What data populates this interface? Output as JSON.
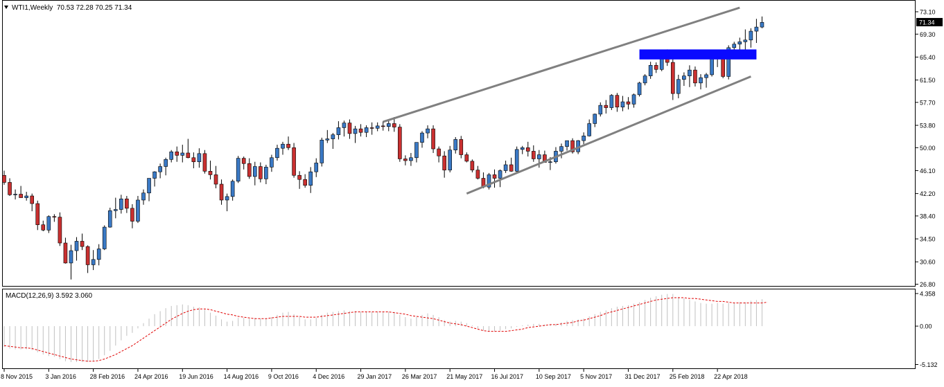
{
  "header": {
    "dropdown_icon": "triangle-down-icon",
    "label": "WTI1,Weekly  70.53 72.28 70.25 71.34"
  },
  "macd_header": {
    "label": "MACD(12,26,9) 3.592 3.060"
  },
  "colors": {
    "bull": "#3a79c5",
    "bear": "#c93030",
    "wick": "#000000",
    "channel": "#808080",
    "zone": "#0a0aff",
    "macd_hist": "#c0c0c0",
    "macd_signal": "#e00000",
    "axis": "#000000"
  },
  "chart_data": [
    {
      "type": "candlestick",
      "symbol": "WTI1",
      "timeframe": "Weekly",
      "last_price_label": "71.34",
      "y_ticks": [
        "73.10",
        "69.30",
        "65.40",
        "61.50",
        "57.70",
        "53.80",
        "50.00",
        "46.10",
        "42.20",
        "38.40",
        "34.50",
        "30.60",
        "26.80"
      ],
      "x_ticks": [
        "8 Nov 2015",
        "3 Jan 2016",
        "28 Feb 2016",
        "24 Apr 2016",
        "19 Jun 2016",
        "14 Aug 2016",
        "9 Oct 2016",
        "4 Dec 2016",
        "29 Jan 2017",
        "26 Mar 2017",
        "21 May 2017",
        "16 Jul 2017",
        "10 Sep 2017",
        "5 Nov 2017",
        "31 Dec 2017",
        "25 Feb 2018",
        "22 Apr 2018"
      ],
      "ylim": [
        26.8,
        73.1
      ],
      "first_week": "2015-11-08",
      "ohlc": [
        [
          45.3,
          46.1,
          43.7,
          44.1
        ],
        [
          44.1,
          44.8,
          41.8,
          42.0
        ],
        [
          42.0,
          42.9,
          41.2,
          42.1
        ],
        [
          42.1,
          43.5,
          41.6,
          41.5
        ],
        [
          41.5,
          42.5,
          41.0,
          41.8
        ],
        [
          41.8,
          42.2,
          39.2,
          40.5
        ],
        [
          40.5,
          41.0,
          36.0,
          36.9
        ],
        [
          36.9,
          37.6,
          35.8,
          36.0
        ],
        [
          36.0,
          38.5,
          35.5,
          38.3
        ],
        [
          38.3,
          38.7,
          37.4,
          38.2
        ],
        [
          38.2,
          39.0,
          33.3,
          33.8
        ],
        [
          33.8,
          34.7,
          30.3,
          30.4
        ],
        [
          30.4,
          33.5,
          27.6,
          32.5
        ],
        [
          32.5,
          34.8,
          30.8,
          34.1
        ],
        [
          34.1,
          35.4,
          32.6,
          33.2
        ],
        [
          33.2,
          33.4,
          28.7,
          30.1
        ],
        [
          30.1,
          32.6,
          29.2,
          31.0
        ],
        [
          31.0,
          33.6,
          30.0,
          32.8
        ],
        [
          32.8,
          36.8,
          32.6,
          36.5
        ],
        [
          36.5,
          39.8,
          36.4,
          39.3
        ],
        [
          39.3,
          41.5,
          38.0,
          39.5
        ],
        [
          39.5,
          42.0,
          38.8,
          41.3
        ],
        [
          41.3,
          41.8,
          38.9,
          39.7
        ],
        [
          39.7,
          40.4,
          36.3,
          37.5
        ],
        [
          37.5,
          41.8,
          37.2,
          41.1
        ],
        [
          41.1,
          42.9,
          40.3,
          42.3
        ],
        [
          42.3,
          44.8,
          40.9,
          44.8
        ],
        [
          44.8,
          46.0,
          43.4,
          45.9
        ],
        [
          45.9,
          47.3,
          44.8,
          46.8
        ],
        [
          46.8,
          48.3,
          45.3,
          48.0
        ],
        [
          48.0,
          49.6,
          47.5,
          49.3
        ],
        [
          49.3,
          50.2,
          47.6,
          48.7
        ],
        [
          48.7,
          50.5,
          47.5,
          49.1
        ],
        [
          49.1,
          51.5,
          48.2,
          48.3
        ],
        [
          48.3,
          49.2,
          46.5,
          47.6
        ],
        [
          47.6,
          49.9,
          46.6,
          49.0
        ],
        [
          49.0,
          49.6,
          45.6,
          46.0
        ],
        [
          46.0,
          47.8,
          44.6,
          45.4
        ],
        [
          45.4,
          46.9,
          43.1,
          43.8
        ],
        [
          43.8,
          44.6,
          40.3,
          41.1
        ],
        [
          41.1,
          42.2,
          39.2,
          41.7
        ],
        [
          41.7,
          44.6,
          41.0,
          44.3
        ],
        [
          44.3,
          48.6,
          44.0,
          48.2
        ],
        [
          48.2,
          48.5,
          46.3,
          47.3
        ],
        [
          47.3,
          48.2,
          44.7,
          45.1
        ],
        [
          45.1,
          47.6,
          43.6,
          46.8
        ],
        [
          46.8,
          47.5,
          44.1,
          44.7
        ],
        [
          44.7,
          47.1,
          43.8,
          46.7
        ],
        [
          46.7,
          48.8,
          45.9,
          48.3
        ],
        [
          48.3,
          50.5,
          47.8,
          49.9
        ],
        [
          49.9,
          51.0,
          48.8,
          50.6
        ],
        [
          50.6,
          51.9,
          49.6,
          50.0
        ],
        [
          50.0,
          50.8,
          44.9,
          45.3
        ],
        [
          45.3,
          46.0,
          43.0,
          44.6
        ],
        [
          44.6,
          45.5,
          43.2,
          43.6
        ],
        [
          43.6,
          46.7,
          42.3,
          45.9
        ],
        [
          45.9,
          48.2,
          45.0,
          47.4
        ],
        [
          47.4,
          51.7,
          46.8,
          51.3
        ],
        [
          51.3,
          53.0,
          50.8,
          51.5
        ],
        [
          51.5,
          52.5,
          49.8,
          52.2
        ],
        [
          52.2,
          54.5,
          51.4,
          53.4
        ],
        [
          53.4,
          54.6,
          51.9,
          54.2
        ],
        [
          54.2,
          54.8,
          51.5,
          52.4
        ],
        [
          52.4,
          53.7,
          50.8,
          53.2
        ],
        [
          53.2,
          54.0,
          51.9,
          52.6
        ],
        [
          52.6,
          53.8,
          51.8,
          53.4
        ],
        [
          53.4,
          54.3,
          52.2,
          53.3
        ],
        [
          53.3,
          54.3,
          52.8,
          53.7
        ],
        [
          53.7,
          54.5,
          52.9,
          53.6
        ],
        [
          53.6,
          54.7,
          52.8,
          54.1
        ],
        [
          54.1,
          55.2,
          52.7,
          53.5
        ],
        [
          53.5,
          54.0,
          47.6,
          48.1
        ],
        [
          48.1,
          48.7,
          47.0,
          47.8
        ],
        [
          47.8,
          49.1,
          46.9,
          48.3
        ],
        [
          48.3,
          50.9,
          47.5,
          50.9
        ],
        [
          50.9,
          52.8,
          50.0,
          52.5
        ],
        [
          52.5,
          53.8,
          51.6,
          53.2
        ],
        [
          53.2,
          53.8,
          49.1,
          49.8
        ],
        [
          49.8,
          50.2,
          47.5,
          48.6
        ],
        [
          48.6,
          49.4,
          44.9,
          46.2
        ],
        [
          46.2,
          50.3,
          45.8,
          49.6
        ],
        [
          49.6,
          51.8,
          49.0,
          51.4
        ],
        [
          51.4,
          52.0,
          48.2,
          48.8
        ],
        [
          48.8,
          49.2,
          47.5,
          47.7
        ],
        [
          47.7,
          48.0,
          45.8,
          46.2
        ],
        [
          46.2,
          46.9,
          44.6,
          44.8
        ],
        [
          44.8,
          45.8,
          43.1,
          43.3
        ],
        [
          43.3,
          45.7,
          42.9,
          45.4
        ],
        [
          45.4,
          46.3,
          43.2,
          44.8
        ],
        [
          44.8,
          46.3,
          43.3,
          46.1
        ],
        [
          46.1,
          47.8,
          45.7,
          47.1
        ],
        [
          47.1,
          48.3,
          45.9,
          46.0
        ],
        [
          46.0,
          50.2,
          45.8,
          49.7
        ],
        [
          49.7,
          50.3,
          48.9,
          50.0
        ],
        [
          50.0,
          51.0,
          48.5,
          49.4
        ],
        [
          49.4,
          50.4,
          47.6,
          48.1
        ],
        [
          48.1,
          49.6,
          46.6,
          48.8
        ],
        [
          48.8,
          49.5,
          47.6,
          47.5
        ],
        [
          47.5,
          48.4,
          46.2,
          47.6
        ],
        [
          47.6,
          50.1,
          47.3,
          49.4
        ],
        [
          49.4,
          50.7,
          48.2,
          50.2
        ],
        [
          50.2,
          51.2,
          49.5,
          51.2
        ],
        [
          51.2,
          51.6,
          49.0,
          49.3
        ],
        [
          49.3,
          51.3,
          48.9,
          51.2
        ],
        [
          51.2,
          52.6,
          50.6,
          52.0
        ],
        [
          52.0,
          54.8,
          51.9,
          54.1
        ],
        [
          54.1,
          55.8,
          53.5,
          55.7
        ],
        [
          55.7,
          57.7,
          55.3,
          57.2
        ],
        [
          57.2,
          58.1,
          55.8,
          56.8
        ],
        [
          56.8,
          59.1,
          56.4,
          58.9
        ],
        [
          58.9,
          59.3,
          56.1,
          56.9
        ],
        [
          56.9,
          58.8,
          56.2,
          57.8
        ],
        [
          57.8,
          58.6,
          56.5,
          57.4
        ],
        [
          57.4,
          59.2,
          56.8,
          59.0
        ],
        [
          59.0,
          61.2,
          58.7,
          61.0
        ],
        [
          61.0,
          62.5,
          60.6,
          62.2
        ],
        [
          62.2,
          64.6,
          61.7,
          64.0
        ],
        [
          64.0,
          64.5,
          62.7,
          63.3
        ],
        [
          63.3,
          66.4,
          63.0,
          66.3
        ],
        [
          66.3,
          66.7,
          63.9,
          64.5
        ],
        [
          64.5,
          65.2,
          58.1,
          59.2
        ],
        [
          59.2,
          62.4,
          58.4,
          61.6
        ],
        [
          61.6,
          62.8,
          60.5,
          62.2
        ],
        [
          62.2,
          64.0,
          60.3,
          63.2
        ],
        [
          63.2,
          63.8,
          60.4,
          61.0
        ],
        [
          61.0,
          62.5,
          59.9,
          61.9
        ],
        [
          61.9,
          62.7,
          60.2,
          62.4
        ],
        [
          62.4,
          65.7,
          62.1,
          65.2
        ],
        [
          65.2,
          66.5,
          63.7,
          65.7
        ],
        [
          65.7,
          66.2,
          61.8,
          62.1
        ],
        [
          62.1,
          67.4,
          61.6,
          67.0
        ],
        [
          67.0,
          68.0,
          65.7,
          67.6
        ],
        [
          67.6,
          68.7,
          66.4,
          68.0
        ],
        [
          68.0,
          70.1,
          66.3,
          68.3
        ],
        [
          68.3,
          70.3,
          67.0,
          69.8
        ],
        [
          69.8,
          71.9,
          67.8,
          70.5
        ],
        [
          70.5,
          72.3,
          70.3,
          71.3
        ]
      ],
      "channel_upper": [
        [
          "2017-02-26",
          54.4
        ],
        [
          "2018-05-20",
          73.8
        ]
      ],
      "channel_lower": [
        [
          "2017-06-11",
          42.2
        ],
        [
          "2018-06-03",
          62.1
        ]
      ],
      "zone": {
        "from": "2018-01-14",
        "to": "2018-06-10",
        "low": 65.0,
        "high": 66.7
      }
    },
    {
      "type": "macd",
      "label": "MACD(12,26,9)",
      "macd": 3.592,
      "signal": 3.06,
      "y_ticks": [
        "4.358",
        "0.00",
        "-5.132"
      ],
      "ylim": [
        -5.132,
        4.358
      ],
      "macd_series": [
        -2.8,
        -3.0,
        -3.1,
        -3.1,
        -3.1,
        -3.2,
        -3.5,
        -3.8,
        -4.0,
        -4.1,
        -4.4,
        -4.7,
        -4.8,
        -4.8,
        -4.8,
        -4.8,
        -4.7,
        -4.4,
        -3.9,
        -3.3,
        -2.6,
        -1.9,
        -1.3,
        -0.9,
        -0.3,
        0.4,
        1.0,
        1.6,
        2.0,
        2.4,
        2.7,
        2.8,
        2.9,
        2.8,
        2.6,
        2.5,
        2.2,
        1.8,
        1.4,
        0.9,
        0.6,
        0.7,
        1.1,
        1.1,
        1.0,
        1.1,
        1.0,
        1.0,
        1.2,
        1.5,
        1.8,
        1.9,
        1.6,
        1.2,
        0.9,
        0.9,
        1.1,
        1.5,
        1.8,
        1.9,
        2.0,
        2.1,
        2.0,
        2.0,
        1.9,
        1.9,
        1.9,
        1.9,
        1.9,
        1.9,
        1.9,
        1.5,
        1.2,
        1.0,
        1.2,
        1.5,
        1.7,
        1.5,
        1.2,
        0.8,
        0.6,
        0.7,
        0.6,
        0.4,
        0.1,
        -0.3,
        -0.6,
        -0.7,
        -0.7,
        -0.6,
        -0.4,
        -0.3,
        -0.1,
        0.1,
        0.2,
        0.3,
        0.3,
        0.2,
        0.2,
        0.3,
        0.5,
        0.7,
        0.8,
        0.9,
        1.0,
        1.3,
        1.6,
        1.9,
        2.1,
        2.4,
        2.6,
        2.7,
        2.8,
        3.0,
        3.2,
        3.5,
        3.8,
        4.0,
        4.2,
        4.3,
        4.3,
        3.9,
        3.7,
        3.5,
        3.3,
        3.1,
        3.0,
        3.0,
        3.1,
        3.0,
        3.1,
        3.1,
        3.2,
        3.2,
        3.4,
        3.5,
        3.6
      ],
      "signal_series": [
        -2.6,
        -2.7,
        -2.8,
        -2.9,
        -2.9,
        -3.0,
        -3.2,
        -3.4,
        -3.6,
        -3.8,
        -4.0,
        -4.2,
        -4.4,
        -4.5,
        -4.6,
        -4.7,
        -4.7,
        -4.6,
        -4.4,
        -4.1,
        -3.8,
        -3.4,
        -3.0,
        -2.6,
        -2.1,
        -1.6,
        -1.1,
        -0.6,
        -0.1,
        0.4,
        0.9,
        1.3,
        1.7,
        2.0,
        2.2,
        2.3,
        2.3,
        2.2,
        2.0,
        1.8,
        1.6,
        1.5,
        1.3,
        1.2,
        1.1,
        1.0,
        1.0,
        1.0,
        1.1,
        1.2,
        1.3,
        1.3,
        1.3,
        1.3,
        1.2,
        1.2,
        1.2,
        1.3,
        1.4,
        1.5,
        1.6,
        1.7,
        1.8,
        1.9,
        1.9,
        1.9,
        1.9,
        1.9,
        1.9,
        1.9,
        1.8,
        1.7,
        1.6,
        1.4,
        1.3,
        1.2,
        1.1,
        1.0,
        0.8,
        0.6,
        0.4,
        0.3,
        0.2,
        0.0,
        -0.2,
        -0.4,
        -0.6,
        -0.7,
        -0.7,
        -0.7,
        -0.7,
        -0.6,
        -0.5,
        -0.4,
        -0.2,
        -0.1,
        0.0,
        0.1,
        0.2,
        0.2,
        0.3,
        0.4,
        0.5,
        0.7,
        0.8,
        1.0,
        1.2,
        1.4,
        1.7,
        1.9,
        2.1,
        2.3,
        2.5,
        2.7,
        2.9,
        3.1,
        3.3,
        3.5,
        3.6,
        3.7,
        3.8,
        3.8,
        3.8,
        3.7,
        3.7,
        3.6,
        3.5,
        3.4,
        3.3,
        3.3,
        3.2,
        3.1,
        3.1,
        3.1,
        3.1,
        3.1,
        3.1,
        3.2
      ]
    }
  ]
}
